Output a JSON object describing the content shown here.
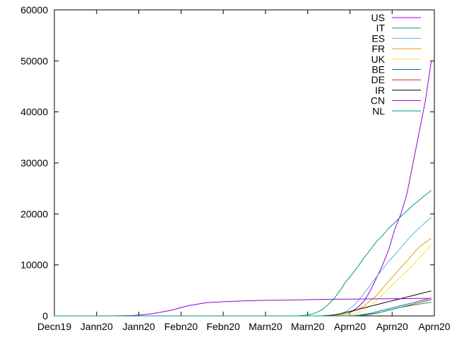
{
  "chart_data": {
    "type": "line",
    "title": "",
    "xlabel": "",
    "ylabel": "",
    "ylim": [
      0,
      60000
    ],
    "y_ticks": [
      0,
      10000,
      20000,
      30000,
      40000,
      50000,
      60000
    ],
    "x_ticks": [
      "Decn19",
      "Jann20",
      "Jann20",
      "Febn20",
      "Febn20",
      "Marn20",
      "Marn20",
      "Aprn20",
      "Aprn20",
      "Aprn20"
    ],
    "x_range_days": [
      0,
      125
    ],
    "x": [
      0,
      8,
      14,
      20,
      26,
      28,
      32,
      38,
      44,
      50,
      56,
      62,
      66,
      70,
      74,
      76,
      78,
      80,
      82,
      84,
      86,
      88,
      90,
      92,
      94,
      96,
      98,
      100,
      102,
      104,
      106,
      108,
      110,
      112,
      114,
      116,
      118,
      120,
      122,
      124
    ],
    "legend_position": "top-right",
    "grid": false,
    "series": [
      {
        "name": "US",
        "color": "#9400d3",
        "values": [
          0,
          0,
          0,
          0,
          0,
          0,
          0,
          0,
          0,
          0,
          0,
          0,
          0,
          0,
          0,
          0,
          0,
          0,
          0,
          0,
          0,
          0,
          0,
          50,
          150,
          400,
          900,
          1800,
          3000,
          5000,
          7500,
          10000,
          13000,
          17000,
          20000,
          24000,
          30000,
          36000,
          42000,
          50000
        ]
      },
      {
        "name": "IT",
        "color": "#009e73",
        "values": [
          0,
          0,
          0,
          0,
          0,
          0,
          0,
          0,
          0,
          0,
          0,
          0,
          0,
          0,
          0,
          0,
          0,
          10,
          80,
          250,
          600,
          1200,
          2200,
          3400,
          5000,
          6800,
          8200,
          9800,
          11500,
          13000,
          14600,
          15800,
          17200,
          18300,
          19500,
          20600,
          21700,
          22700,
          23700,
          24600
        ]
      },
      {
        "name": "ES",
        "color": "#56b4e9",
        "values": [
          0,
          0,
          0,
          0,
          0,
          0,
          0,
          0,
          0,
          0,
          0,
          0,
          0,
          0,
          0,
          0,
          0,
          0,
          0,
          0,
          0,
          10,
          50,
          150,
          400,
          900,
          1800,
          3000,
          4500,
          6100,
          7700,
          9200,
          10700,
          12000,
          13400,
          14800,
          16100,
          17200,
          18300,
          19300
        ]
      },
      {
        "name": "FR",
        "color": "#e69f00",
        "values": [
          0,
          0,
          0,
          0,
          0,
          0,
          0,
          0,
          0,
          0,
          0,
          0,
          0,
          0,
          0,
          0,
          0,
          0,
          0,
          0,
          0,
          0,
          0,
          50,
          150,
          400,
          800,
          1300,
          2000,
          3000,
          4000,
          5400,
          6800,
          8100,
          9500,
          10800,
          12200,
          13500,
          14400,
          15200
        ]
      },
      {
        "name": "UK",
        "color": "#f0e442",
        "values": [
          0,
          0,
          0,
          0,
          0,
          0,
          0,
          0,
          0,
          0,
          0,
          0,
          0,
          0,
          0,
          0,
          0,
          0,
          0,
          0,
          0,
          0,
          0,
          0,
          0,
          100,
          300,
          700,
          1200,
          2000,
          3000,
          4200,
          5400,
          6500,
          7700,
          8800,
          10000,
          11300,
          12600,
          13900
        ]
      },
      {
        "name": "BE",
        "color": "#0072b2",
        "values": [
          0,
          0,
          0,
          0,
          0,
          0,
          0,
          0,
          0,
          0,
          0,
          0,
          0,
          0,
          0,
          0,
          0,
          0,
          0,
          0,
          0,
          0,
          0,
          0,
          0,
          0,
          50,
          150,
          300,
          500,
          800,
          1100,
          1400,
          1700,
          2000,
          2300,
          2600,
          2900,
          3200,
          3500
        ]
      },
      {
        "name": "DE",
        "color": "#e51e10",
        "values": [
          0,
          0,
          0,
          0,
          0,
          0,
          0,
          0,
          0,
          0,
          0,
          0,
          0,
          0,
          0,
          0,
          0,
          0,
          0,
          0,
          0,
          0,
          0,
          0,
          0,
          0,
          20,
          60,
          150,
          300,
          500,
          800,
          1100,
          1400,
          1700,
          2000,
          2300,
          2600,
          2900,
          3200
        ]
      },
      {
        "name": "IR",
        "color": "#000000",
        "values": [
          0,
          0,
          0,
          0,
          0,
          0,
          0,
          0,
          0,
          0,
          0,
          0,
          0,
          0,
          0,
          0,
          0,
          0,
          0,
          0,
          0,
          20,
          80,
          200,
          400,
          700,
          1000,
          1300,
          1600,
          1900,
          2200,
          2500,
          2800,
          3100,
          3400,
          3700,
          4000,
          4300,
          4600,
          4900
        ]
      },
      {
        "name": "CN",
        "color": "#9400d3",
        "values": [
          0,
          0,
          0,
          10,
          80,
          170,
          420,
          1050,
          2000,
          2600,
          2800,
          2950,
          3000,
          3050,
          3080,
          3100,
          3120,
          3150,
          3170,
          3200,
          3210,
          3230,
          3250,
          3260,
          3280,
          3290,
          3300,
          3310,
          3320,
          3330,
          3340,
          3350,
          3360,
          3370,
          3380,
          3390,
          3400,
          3410,
          3420,
          3430
        ]
      },
      {
        "name": "NL",
        "color": "#009e73",
        "values": [
          0,
          0,
          0,
          0,
          0,
          0,
          0,
          0,
          0,
          0,
          0,
          0,
          0,
          0,
          0,
          0,
          0,
          0,
          0,
          0,
          0,
          0,
          0,
          0,
          0,
          0,
          30,
          80,
          180,
          350,
          550,
          800,
          1100,
          1400,
          1700,
          1900,
          2100,
          2300,
          2500,
          2700
        ]
      }
    ]
  }
}
